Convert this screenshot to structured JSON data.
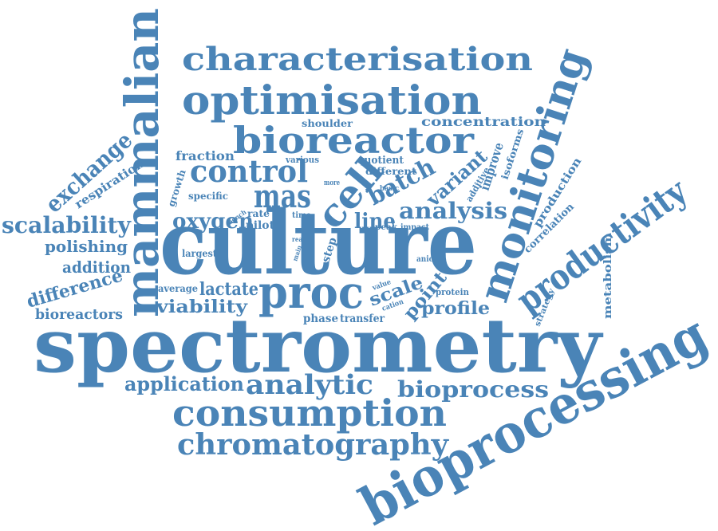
{
  "color": "#4a84b7",
  "words": {
    "spectrometry": "spectrometry",
    "culture": "culture",
    "bioprocessing": "bioprocessing",
    "mammalian": "mammalian",
    "monitoring": "monitoring",
    "productivity": "productivity",
    "optimisation": "optimisation",
    "characterisation": "characterisation",
    "bioreactor": "bioreactor",
    "consumption": "consumption",
    "chromatography": "chromatography",
    "proc": "proc",
    "analytic": "analytic",
    "control": "control",
    "cell": "cell",
    "mas": "mas",
    "batch": "batch",
    "analysis": "analysis",
    "bioprocess": "bioprocess",
    "application": "application",
    "exchange": "exchange",
    "scalability": "scalability",
    "oxygen": "oxygen",
    "variant": "variant",
    "line": "line",
    "scale": "scale",
    "point": "point",
    "profile": "profile",
    "viability": "viability",
    "lactate": "lactate",
    "difference": "difference",
    "polishing": "polishing",
    "addition": "addition",
    "bioreactors": "bioreactors",
    "concentration": "concentration",
    "fraction": "fraction",
    "respiration": "respiration",
    "growth": "growth",
    "specific": "specific",
    "shoulder": "shoulder",
    "various": "various",
    "quotient": "quotient",
    "different": "different",
    "improve": "improve",
    "isoforms": "isoforms",
    "additive": "additive",
    "production": "production",
    "correlation": "correlation",
    "metabolism": "metabolism",
    "strategy": "strategy",
    "basic": "basic",
    "more": "more",
    "bench": "bench",
    "rate": "rate",
    "time": "time",
    "pilot": "pilot",
    "peak": "peak",
    "impact": "impact",
    "real": "real",
    "main": "main",
    "step": "step",
    "largest": "largest",
    "average": "average",
    "phase": "phase",
    "transfer": "transfer",
    "value": "value",
    "cation": "cation",
    "protein": "protein",
    "anion": "anion"
  }
}
